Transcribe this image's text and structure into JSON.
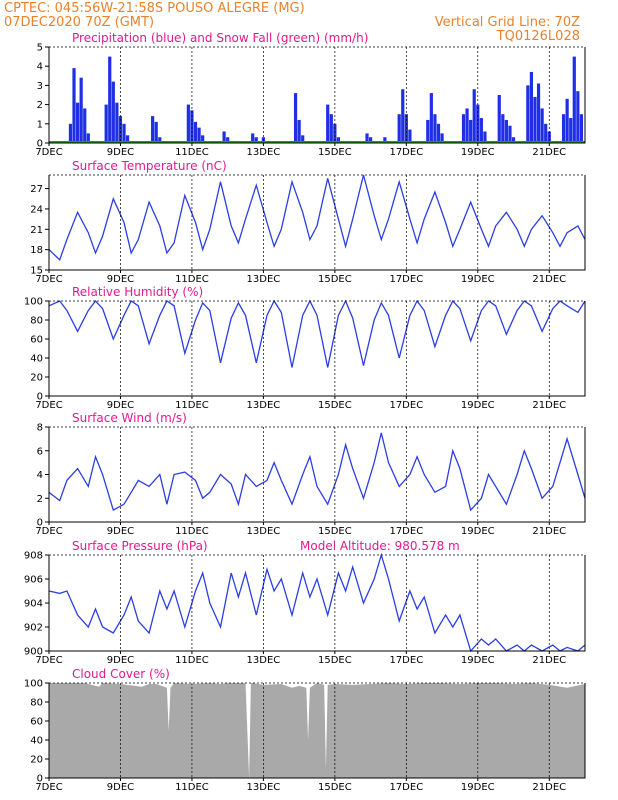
{
  "header": {
    "line1": "CPTEC:   045:56W-21:58S   POUSO ALEGRE (MG)",
    "line2": "07DEC2020 70Z (GMT)",
    "grid_note": "Vertical Grid Line: 70Z",
    "code": "TQ0126L028"
  },
  "x_labels": [
    "7DEC",
    "9DEC",
    "11DEC",
    "13DEC",
    "15DEC",
    "17DEC",
    "19DEC",
    "21DEC"
  ],
  "colors": {
    "line": "#2b3ee0",
    "precip": "#1f2fe6",
    "snow": "#1aa21a",
    "cloud": "#a9a9a9",
    "header": "#e8822c",
    "title": "#e01a8f"
  },
  "panels": [
    {
      "title": "Precipitation (blue) and Snow Fall (green) (mm/h)",
      "extra": "",
      "yticks": [
        "0",
        "1",
        "2",
        "3",
        "4",
        "5"
      ]
    },
    {
      "title": "Surface Temperature (nC)",
      "extra": "",
      "yticks": [
        "15",
        "18",
        "21",
        "24",
        "27"
      ]
    },
    {
      "title": "Relative Humidity (%)",
      "extra": "",
      "yticks": [
        "0",
        "20",
        "40",
        "60",
        "80",
        "100"
      ]
    },
    {
      "title": "Surface Wind (m/s)",
      "extra": "",
      "yticks": [
        "0",
        "2",
        "4",
        "6",
        "8"
      ]
    },
    {
      "title": "Surface Pressure (hPa)",
      "extra": "Model Altitude: 980.578 m",
      "yticks": [
        "900",
        "902",
        "904",
        "906",
        "908"
      ]
    },
    {
      "title": "Cloud Cover (%)",
      "extra": "",
      "yticks": [
        "0",
        "20",
        "40",
        "60",
        "80",
        "100"
      ]
    }
  ],
  "chart_data": [
    {
      "type": "bar",
      "title": "Precipitation (blue) and Snow Fall (green) (mm/h)",
      "ylim": [
        0,
        5
      ],
      "xlim_days": [
        7,
        22
      ],
      "x_unit": "day of December 2020",
      "series": [
        {
          "name": "Precipitation",
          "x": [
            7.6,
            7.7,
            7.8,
            7.9,
            8.0,
            8.1,
            8.6,
            8.7,
            8.8,
            8.9,
            9.0,
            9.1,
            9.2,
            9.9,
            10.0,
            10.1,
            10.9,
            11.0,
            11.1,
            11.2,
            11.3,
            11.9,
            12.0,
            12.7,
            12.8,
            13.0,
            13.9,
            14.0,
            14.1,
            14.8,
            14.9,
            15.0,
            15.1,
            15.9,
            16.0,
            16.4,
            16.8,
            16.9,
            17.0,
            17.1,
            17.6,
            17.7,
            17.8,
            17.9,
            18.0,
            18.6,
            18.7,
            18.8,
            18.9,
            19.0,
            19.1,
            19.2,
            19.6,
            19.7,
            19.8,
            19.9,
            20.0,
            20.4,
            20.5,
            20.6,
            20.7,
            20.8,
            20.9,
            21.0,
            21.4,
            21.5,
            21.6,
            21.7,
            21.8,
            21.9
          ],
          "values": [
            1.0,
            3.9,
            2.1,
            3.4,
            1.8,
            0.5,
            2.0,
            4.5,
            3.2,
            2.1,
            1.4,
            1.0,
            0.4,
            1.4,
            1.1,
            0.3,
            2.0,
            1.7,
            1.1,
            0.8,
            0.4,
            0.6,
            0.3,
            0.5,
            0.3,
            0.3,
            2.6,
            1.2,
            0.4,
            2.0,
            1.5,
            1.0,
            0.3,
            0.5,
            0.3,
            0.3,
            1.5,
            2.8,
            1.5,
            0.7,
            1.2,
            2.6,
            1.5,
            1.0,
            0.5,
            1.5,
            1.8,
            1.2,
            2.8,
            2.0,
            1.3,
            0.6,
            2.5,
            1.5,
            1.2,
            0.9,
            0.3,
            3.0,
            3.7,
            2.4,
            3.1,
            1.8,
            1.0,
            0.6,
            1.5,
            2.3,
            1.3,
            4.5,
            2.7,
            1.5
          ]
        },
        {
          "name": "Snow Fall",
          "x": [
            7,
            22
          ],
          "values": [
            0,
            0
          ]
        }
      ]
    },
    {
      "type": "line",
      "title": "Surface Temperature (nC)",
      "ylim": [
        15,
        29
      ],
      "xlim_days": [
        7,
        22
      ],
      "series": [
        {
          "name": "Temperature",
          "x": [
            7.0,
            7.3,
            7.5,
            7.8,
            8.1,
            8.3,
            8.5,
            8.8,
            9.1,
            9.3,
            9.5,
            9.8,
            10.1,
            10.3,
            10.5,
            10.8,
            11.1,
            11.3,
            11.5,
            11.8,
            12.1,
            12.3,
            12.5,
            12.8,
            13.1,
            13.3,
            13.5,
            13.8,
            14.1,
            14.3,
            14.5,
            14.8,
            15.1,
            15.3,
            15.5,
            15.8,
            16.1,
            16.3,
            16.5,
            16.8,
            17.1,
            17.3,
            17.5,
            17.8,
            18.1,
            18.3,
            18.5,
            18.8,
            19.1,
            19.3,
            19.5,
            19.8,
            20.1,
            20.3,
            20.5,
            20.8,
            21.1,
            21.3,
            21.5,
            21.8,
            22.0
          ],
          "values": [
            18,
            16.5,
            19.5,
            23.5,
            20.5,
            17.5,
            20,
            25.5,
            22,
            17.5,
            19.5,
            25,
            21.5,
            17.5,
            19,
            26,
            22,
            18,
            21,
            28,
            21.5,
            19,
            22.5,
            27.5,
            22,
            18.5,
            21,
            28,
            23.5,
            19.5,
            21.5,
            28.5,
            22.5,
            18.5,
            22.5,
            29,
            23,
            19.5,
            22.5,
            28,
            22.5,
            19,
            22.5,
            26.5,
            22,
            18.5,
            21,
            25,
            21,
            18.5,
            21.5,
            23.5,
            21,
            18.5,
            21,
            23,
            20.5,
            18.5,
            20.5,
            21.5,
            19.5
          ]
        }
      ]
    },
    {
      "type": "line",
      "title": "Relative Humidity (%)",
      "ylim": [
        0,
        100
      ],
      "xlim_days": [
        7,
        22
      ],
      "series": [
        {
          "name": "Relative Humidity",
          "x": [
            7.0,
            7.3,
            7.5,
            7.8,
            8.1,
            8.3,
            8.5,
            8.8,
            9.1,
            9.3,
            9.5,
            9.8,
            10.1,
            10.3,
            10.5,
            10.8,
            11.1,
            11.3,
            11.5,
            11.8,
            12.1,
            12.3,
            12.5,
            12.8,
            13.1,
            13.3,
            13.5,
            13.8,
            14.1,
            14.3,
            14.5,
            14.8,
            15.1,
            15.3,
            15.5,
            15.8,
            16.1,
            16.3,
            16.5,
            16.8,
            17.1,
            17.3,
            17.5,
            17.8,
            18.1,
            18.3,
            18.5,
            18.8,
            19.1,
            19.3,
            19.5,
            19.8,
            20.1,
            20.3,
            20.5,
            20.8,
            21.1,
            21.3,
            21.5,
            21.8,
            22.0
          ],
          "values": [
            95,
            100,
            90,
            68,
            90,
            100,
            92,
            60,
            85,
            100,
            95,
            55,
            85,
            100,
            95,
            45,
            80,
            98,
            90,
            35,
            82,
            98,
            85,
            35,
            85,
            100,
            88,
            30,
            85,
            100,
            85,
            30,
            85,
            100,
            82,
            32,
            80,
            98,
            85,
            40,
            85,
            100,
            90,
            52,
            85,
            100,
            92,
            58,
            90,
            100,
            95,
            65,
            90,
            100,
            95,
            68,
            92,
            100,
            95,
            88,
            100
          ]
        }
      ]
    },
    {
      "type": "line",
      "title": "Surface Wind (m/s)",
      "ylim": [
        0,
        8
      ],
      "xlim_days": [
        7,
        22
      ],
      "series": [
        {
          "name": "Wind speed",
          "x": [
            7.0,
            7.3,
            7.5,
            7.8,
            8.1,
            8.3,
            8.5,
            8.8,
            9.1,
            9.3,
            9.5,
            9.8,
            10.1,
            10.3,
            10.5,
            10.8,
            11.1,
            11.3,
            11.5,
            11.8,
            12.1,
            12.3,
            12.5,
            12.8,
            13.1,
            13.3,
            13.5,
            13.8,
            14.1,
            14.3,
            14.5,
            14.8,
            15.1,
            15.3,
            15.5,
            15.8,
            16.1,
            16.3,
            16.5,
            16.8,
            17.1,
            17.3,
            17.5,
            17.8,
            18.1,
            18.3,
            18.5,
            18.8,
            19.1,
            19.3,
            19.5,
            19.8,
            20.1,
            20.3,
            20.5,
            20.8,
            21.1,
            21.3,
            21.5,
            21.8,
            22.0
          ],
          "values": [
            2.5,
            1.8,
            3.5,
            4.5,
            3,
            5.5,
            4,
            1,
            1.5,
            2.5,
            3.5,
            3,
            4,
            1.5,
            4,
            4.2,
            3.5,
            2,
            2.5,
            4,
            3.2,
            1.5,
            4,
            3,
            3.5,
            5,
            3.5,
            1.5,
            4,
            5.5,
            3,
            1.5,
            4,
            6.5,
            4.5,
            2,
            5,
            7.5,
            5,
            3,
            4,
            5.5,
            4,
            2.5,
            3,
            6,
            4.5,
            1,
            2,
            4,
            3,
            1.5,
            4,
            6,
            4.5,
            2,
            3,
            5,
            7,
            4,
            2
          ]
        }
      ]
    },
    {
      "type": "line",
      "title": "Surface Pressure (hPa)",
      "ylim": [
        900,
        908
      ],
      "xlim_days": [
        7,
        22
      ],
      "series": [
        {
          "name": "Surface Pressure",
          "x": [
            7.0,
            7.3,
            7.5,
            7.8,
            8.1,
            8.3,
            8.5,
            8.8,
            9.1,
            9.3,
            9.5,
            9.8,
            10.1,
            10.3,
            10.5,
            10.8,
            11.1,
            11.3,
            11.5,
            11.8,
            12.1,
            12.3,
            12.5,
            12.8,
            13.1,
            13.3,
            13.5,
            13.8,
            14.1,
            14.3,
            14.5,
            14.8,
            15.1,
            15.3,
            15.5,
            15.8,
            16.1,
            16.3,
            16.5,
            16.8,
            17.1,
            17.3,
            17.5,
            17.8,
            18.1,
            18.3,
            18.5,
            18.8,
            19.1,
            19.3,
            19.5,
            19.8,
            20.1,
            20.3,
            20.5,
            20.8,
            21.1,
            21.3,
            21.5,
            21.8,
            22.0
          ],
          "values": [
            905,
            904.8,
            905,
            903,
            902,
            903.5,
            902,
            901.5,
            903,
            904.5,
            902.5,
            901.5,
            905,
            903.5,
            905,
            902,
            905,
            906.5,
            904,
            902,
            906.5,
            904.5,
            906.5,
            903,
            906.8,
            905,
            906,
            903,
            906.5,
            904.5,
            906,
            903,
            906.5,
            905,
            907,
            904,
            906,
            908,
            906,
            902.5,
            905,
            903.5,
            904.5,
            901.5,
            903,
            902,
            903,
            900,
            901,
            900.5,
            901,
            899.5,
            900.5,
            899.5,
            900.5,
            899.8,
            900.5,
            899.5,
            900.3,
            899.8,
            900.5
          ]
        }
      ]
    },
    {
      "type": "area",
      "title": "Cloud Cover (%)",
      "ylim": [
        0,
        100
      ],
      "xlim_days": [
        7,
        22
      ],
      "series": [
        {
          "name": "Cloud Cover",
          "x": [
            7.0,
            7.5,
            8.0,
            8.4,
            8.5,
            9.0,
            9.6,
            9.8,
            10.0,
            10.3,
            10.35,
            10.4,
            10.5,
            11.0,
            11.5,
            11.8,
            12.0,
            12.5,
            12.6,
            12.65,
            12.7,
            13.0,
            13.5,
            13.8,
            14.0,
            14.2,
            14.25,
            14.3,
            14.5,
            14.7,
            14.75,
            14.8,
            15.0,
            15.5,
            16.0,
            16.5,
            17.0,
            17.5,
            18.0,
            18.5,
            19.0,
            19.5,
            20.0,
            20.5,
            21.0,
            21.5,
            22.0
          ],
          "values": [
            100,
            100,
            100,
            96,
            100,
            99,
            96,
            99,
            99,
            95,
            50,
            95,
            100,
            99,
            100,
            99,
            100,
            100,
            0,
            100,
            100,
            98,
            99,
            95,
            97,
            95,
            40,
            95,
            100,
            98,
            10,
            98,
            99,
            98,
            99,
            100,
            99,
            100,
            100,
            99,
            100,
            100,
            99,
            100,
            98,
            95,
            99
          ]
        }
      ]
    }
  ]
}
